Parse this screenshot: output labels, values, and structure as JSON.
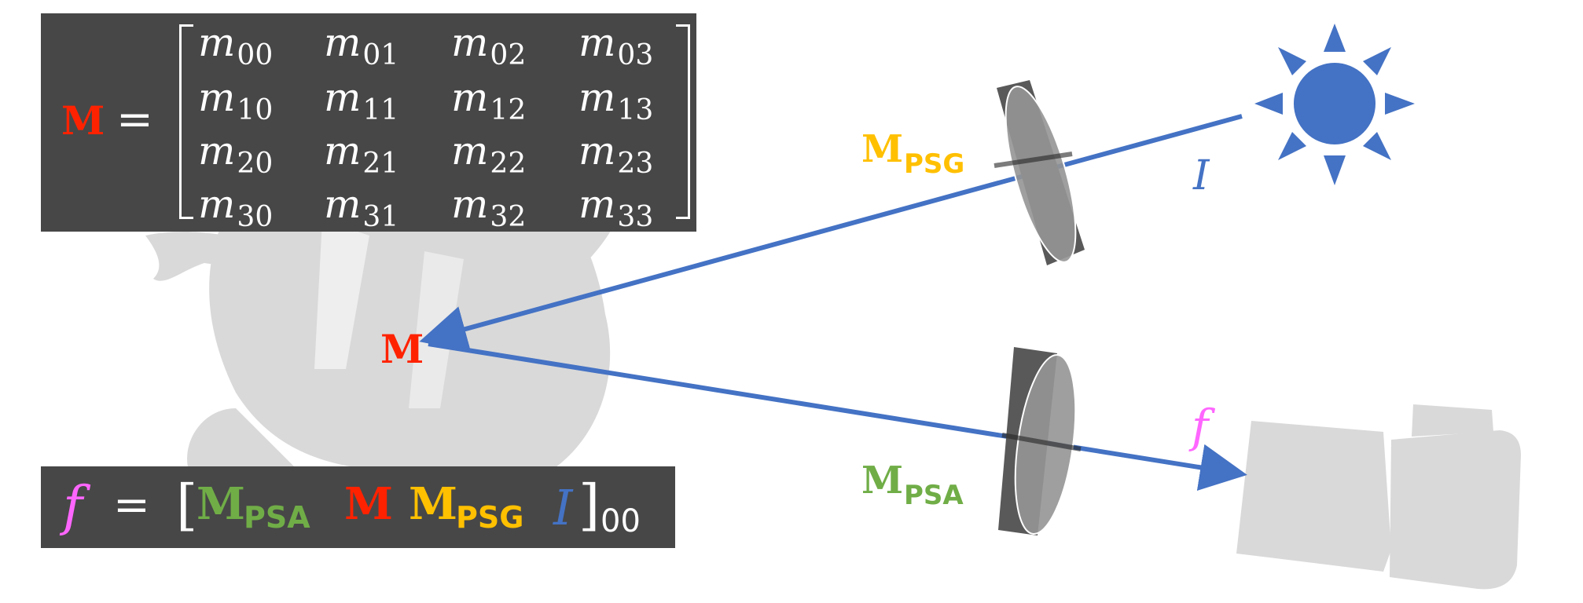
{
  "matrix_equation": {
    "lhs": "M",
    "equals": "=",
    "rows": [
      [
        {
          "base": "m",
          "sub": "00"
        },
        {
          "base": "m",
          "sub": "01"
        },
        {
          "base": "m",
          "sub": "02"
        },
        {
          "base": "m",
          "sub": "03"
        }
      ],
      [
        {
          "base": "m",
          "sub": "10"
        },
        {
          "base": "m",
          "sub": "11"
        },
        {
          "base": "m",
          "sub": "12"
        },
        {
          "base": "m",
          "sub": "13"
        }
      ],
      [
        {
          "base": "m",
          "sub": "20"
        },
        {
          "base": "m",
          "sub": "21"
        },
        {
          "base": "m",
          "sub": "22"
        },
        {
          "base": "m",
          "sub": "23"
        }
      ],
      [
        {
          "base": "m",
          "sub": "30"
        },
        {
          "base": "m",
          "sub": "31"
        },
        {
          "base": "m",
          "sub": "32"
        },
        {
          "base": "m",
          "sub": "33"
        }
      ]
    ]
  },
  "formula": {
    "f": "f",
    "equals": "=",
    "open_bracket": "[",
    "m_psa": "M",
    "m_psa_sub": "PSA",
    "m": "M",
    "m_psg": "M",
    "m_psg_sub": "PSG",
    "i": "I",
    "close_bracket": "]",
    "close_sub": "00"
  },
  "diagram": {
    "object_label": "M",
    "psg_label": "M",
    "psg_sub": "PSG",
    "psa_label": "M",
    "psa_sub": "PSA",
    "light_label": "I",
    "camera_label": "f"
  },
  "colors": {
    "mueller_red": "#ff2200",
    "psg_yellow": "#ffc000",
    "psa_green": "#70ad47",
    "intensity_blue": "#4472c4",
    "output_pink": "#ff66ff",
    "box_gray": "#474747",
    "silhouette_gray": "#d9d9d9"
  },
  "icons": [
    "sun-icon",
    "camera-icon",
    "polarizer-generator-icon",
    "polarizer-analyzer-icon",
    "object-silhouette"
  ]
}
